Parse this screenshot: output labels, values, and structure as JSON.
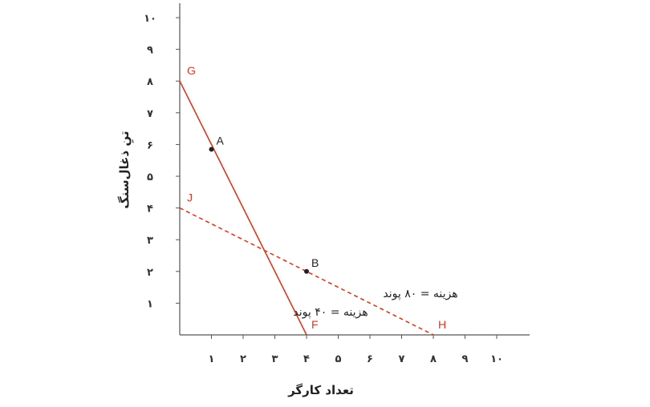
{
  "chart_data": {
    "type": "line",
    "xlabel": "تعداد کارگر",
    "ylabel": "تنِ ذغال‌سنگ",
    "xlim": [
      0,
      10.5
    ],
    "ylim": [
      0,
      10.5
    ],
    "x_ticks": [
      {
        "value": 1,
        "label": "۱"
      },
      {
        "value": 2,
        "label": "۲"
      },
      {
        "value": 3,
        "label": "۳"
      },
      {
        "value": 4,
        "label": "۴"
      },
      {
        "value": 5,
        "label": "۵"
      },
      {
        "value": 6,
        "label": "۶"
      },
      {
        "value": 7,
        "label": "۷"
      },
      {
        "value": 8,
        "label": "۸"
      },
      {
        "value": 9,
        "label": "۹"
      },
      {
        "value": 10,
        "label": "۱۰"
      }
    ],
    "y_ticks": [
      {
        "value": 1,
        "label": "۱"
      },
      {
        "value": 2,
        "label": "۲"
      },
      {
        "value": 3,
        "label": "۳"
      },
      {
        "value": 4,
        "label": "۴"
      },
      {
        "value": 5,
        "label": "۵"
      },
      {
        "value": 6,
        "label": "۶"
      },
      {
        "value": 7,
        "label": "۷"
      },
      {
        "value": 8,
        "label": "۸"
      },
      {
        "value": 9,
        "label": "۹"
      },
      {
        "value": 10,
        "label": "۱۰"
      }
    ],
    "series": [
      {
        "style": "solid",
        "color": "#d93a1f",
        "x": [
          0,
          4
        ],
        "y": [
          8,
          0
        ],
        "start_label": "G",
        "end_label": "F",
        "cost_label": "هزینه = ۴۰ پوند"
      },
      {
        "style": "dashed",
        "color": "#d93a1f",
        "x": [
          0,
          8
        ],
        "y": [
          4,
          0
        ],
        "start_label": "J",
        "end_label": "H",
        "cost_label": "هزینه = ۸۰ پوند"
      }
    ],
    "points": [
      {
        "label": "A",
        "x": 1,
        "y": 5.85
      },
      {
        "label": "B",
        "x": 4,
        "y": 2
      }
    ]
  }
}
